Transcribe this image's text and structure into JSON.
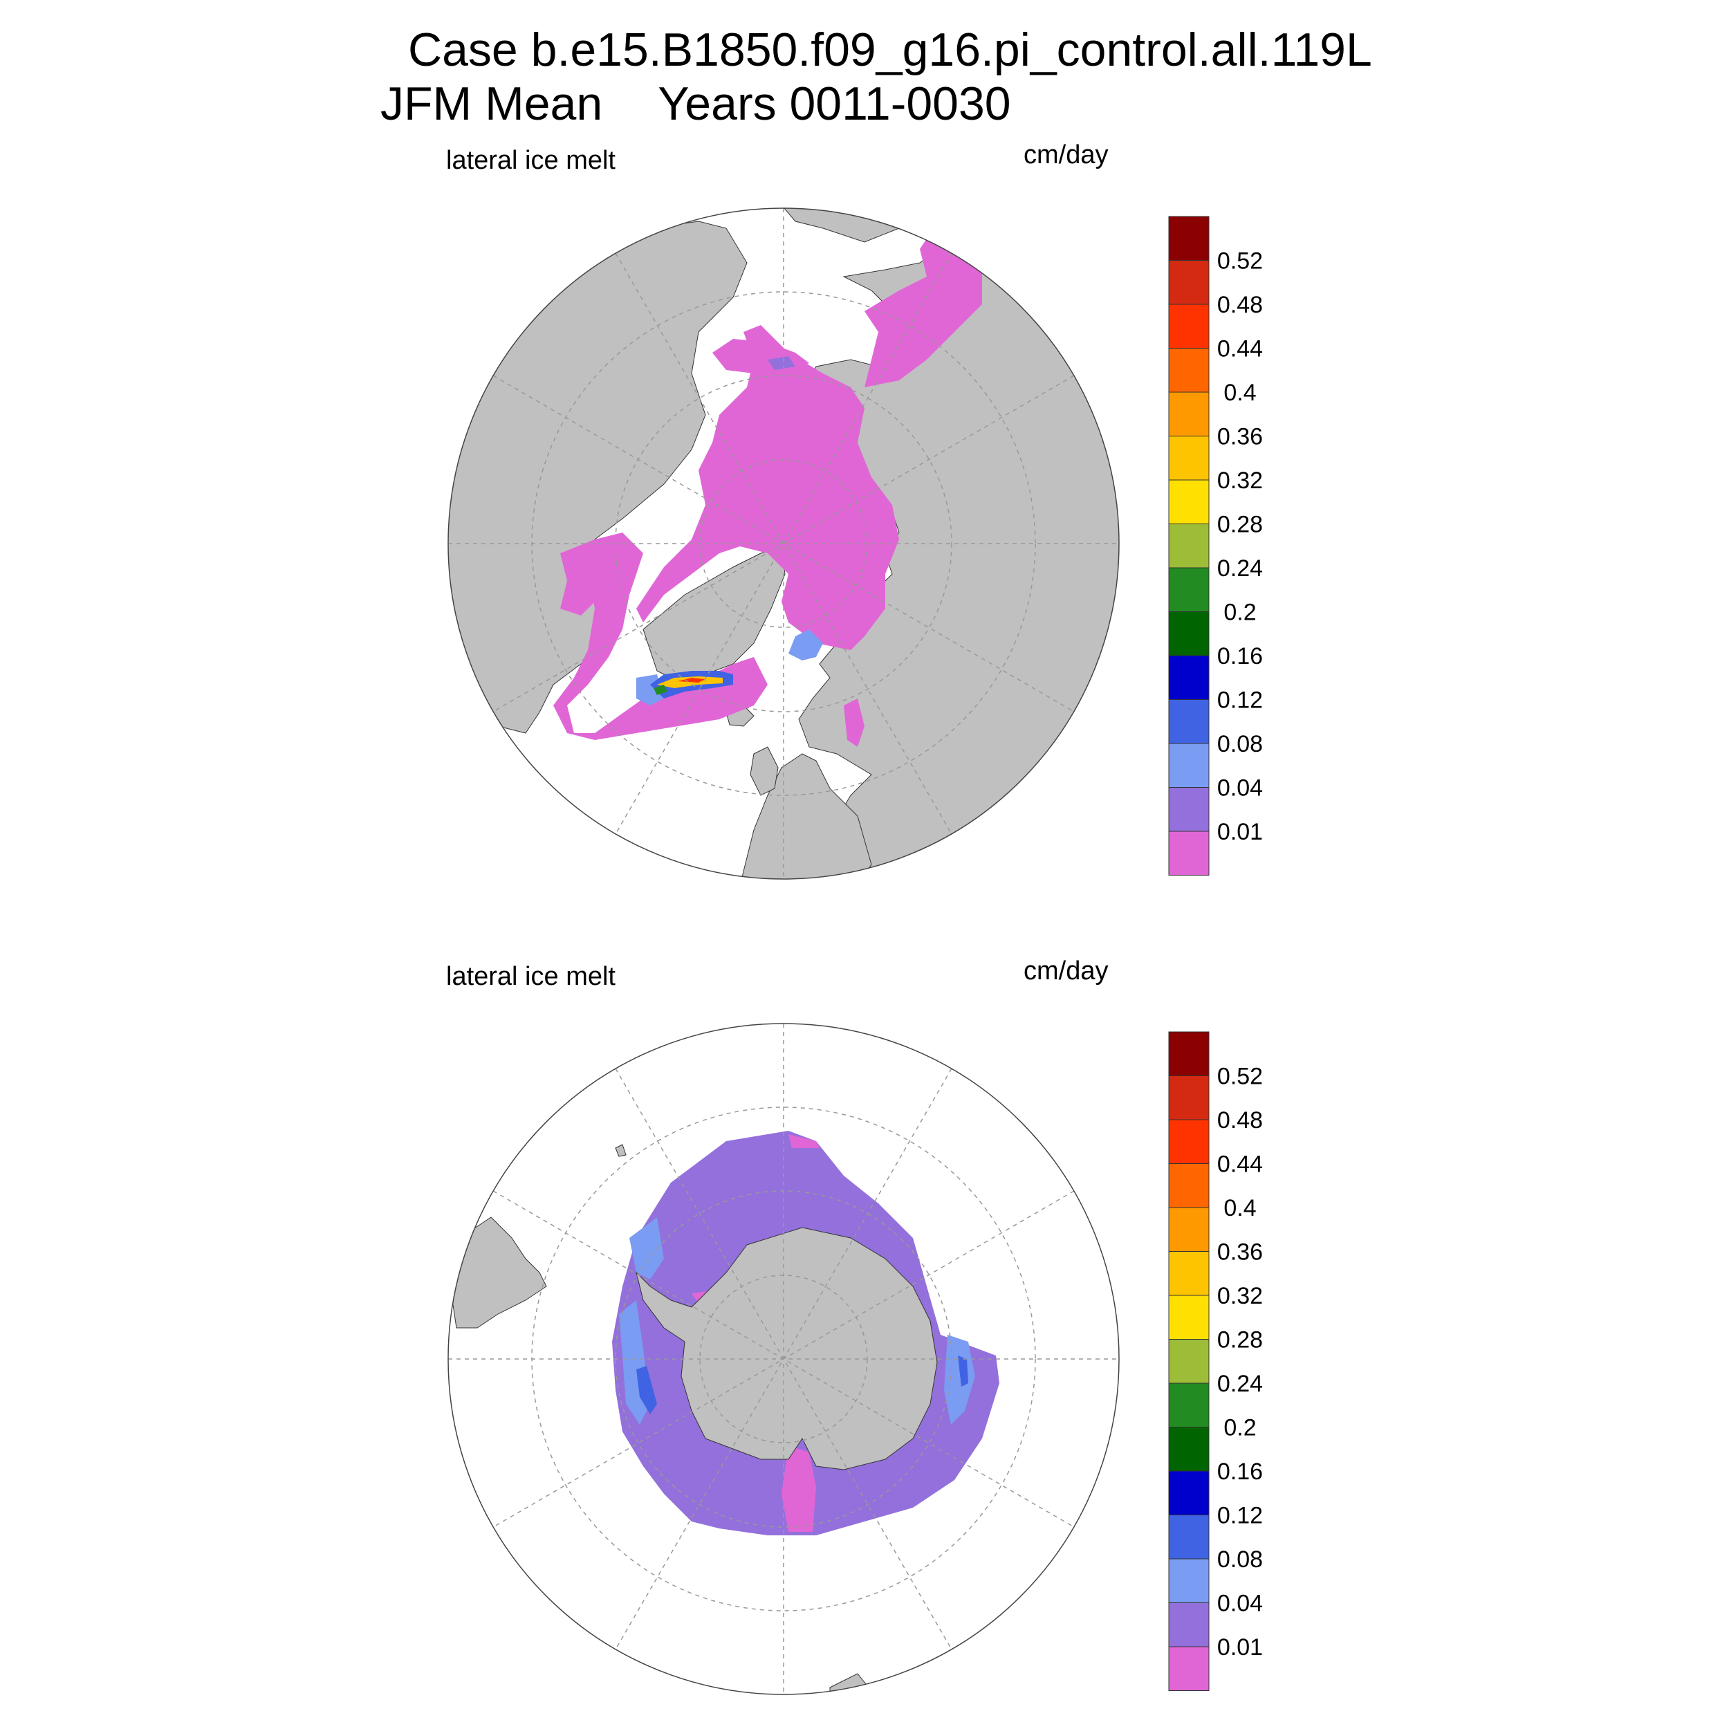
{
  "title": {
    "case_line": "Case b.e15.B1850.f09_g16.pi_control.all.119L",
    "season": "JFM Mean",
    "years": "Years 0011-0030"
  },
  "panels": [
    {
      "id": "north",
      "hemisphere": "Northern",
      "field_label": "lateral ice melt",
      "units": "cm/day"
    },
    {
      "id": "south",
      "hemisphere": "Southern",
      "field_label": "lateral ice melt",
      "units": "cm/day"
    }
  ],
  "colorbar": {
    "labels": [
      "0.52",
      "0.48",
      "0.44",
      "0.4",
      "0.36",
      "0.32",
      "0.28",
      "0.24",
      "0.2",
      "0.16",
      "0.12",
      "0.08",
      "0.04",
      "0.01"
    ],
    "colors_top_to_bottom": [
      "#8b0000",
      "#d42a12",
      "#ff3300",
      "#ff6600",
      "#ff9900",
      "#ffc400",
      "#ffe000",
      "#9dbd38",
      "#228b22",
      "#006400",
      "#0000cd",
      "#3f63e3",
      "#7a9cf2",
      "#9370db",
      "#e066d6"
    ]
  },
  "style": {
    "land": "#c0c0c0",
    "ocean": "#ffffff",
    "grid": "#999999"
  }
}
